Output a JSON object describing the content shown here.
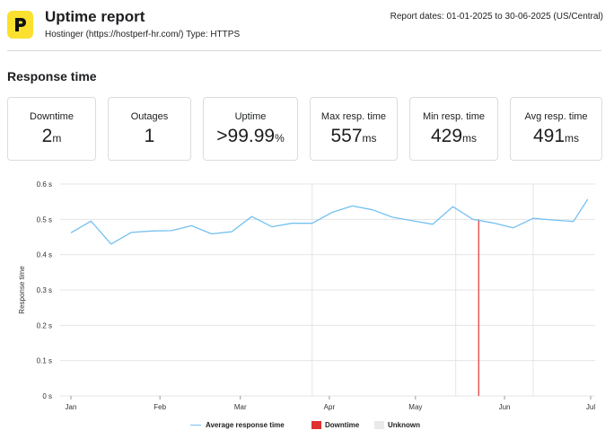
{
  "header": {
    "title": "Uptime report",
    "subtitle": "Hostinger (https://hostperf-hr.com/) Type: HTTPS",
    "report_dates": "Report dates: 01-01-2025 to 30-06-2025 (US/Central)",
    "logo_icon": "hostinger-logo-icon",
    "logo_color": "#fbe02f"
  },
  "section": {
    "title": "Response time"
  },
  "cards": [
    {
      "label": "Downtime",
      "value": "2",
      "unit": "m"
    },
    {
      "label": "Outages",
      "value": "1",
      "unit": ""
    },
    {
      "label": "Uptime",
      "value": ">99.99",
      "unit": "%"
    },
    {
      "label": "Max resp. time",
      "value": "557",
      "unit": "ms"
    },
    {
      "label": "Min resp. time",
      "value": "429",
      "unit": "ms"
    },
    {
      "label": "Avg resp. time",
      "value": "491",
      "unit": "ms"
    }
  ],
  "legend": {
    "avg": "Average response time",
    "downtime": "Downtime",
    "unknown": "Unknown"
  },
  "colors": {
    "line": "#74c1f1",
    "downtime": "#e03131",
    "unknown": "#e9e9ea",
    "grid": "#e4e4e6"
  },
  "chart_data": {
    "type": "line",
    "ylabel": "Response time",
    "ylim": [
      0,
      0.6
    ],
    "yticks": [
      0,
      0.1,
      0.2,
      0.3,
      0.4,
      0.5,
      0.6
    ],
    "ytick_labels": [
      "0 s",
      "0.1 s",
      "0.2 s",
      "0.3 s",
      "0.4 s",
      "0.5 s",
      "0.6 s"
    ],
    "x_start": "2025-01-01",
    "x_end": "2025-06-30",
    "xticks": [
      {
        "date": "2025-01-01",
        "label": "Jan"
      },
      {
        "date": "2025-02-01",
        "label": "Feb"
      },
      {
        "date": "2025-03-01",
        "label": "Mar"
      },
      {
        "date": "2025-04-01",
        "label": "Apr"
      },
      {
        "date": "2025-05-01",
        "label": "May"
      },
      {
        "date": "2025-06-01",
        "label": "Jun"
      },
      {
        "date": "2025-07-01",
        "label": "Jul"
      }
    ],
    "grid": true,
    "legend_position": "bottom",
    "series": [
      {
        "name": "Average response time",
        "x": [
          "2025-01-01",
          "2025-01-08",
          "2025-01-15",
          "2025-01-22",
          "2025-01-29",
          "2025-02-05",
          "2025-02-12",
          "2025-02-19",
          "2025-02-26",
          "2025-03-05",
          "2025-03-12",
          "2025-03-19",
          "2025-03-26",
          "2025-04-02",
          "2025-04-09",
          "2025-04-16",
          "2025-04-23",
          "2025-04-30",
          "2025-05-07",
          "2025-05-14",
          "2025-05-21",
          "2025-05-28",
          "2025-06-04",
          "2025-06-11",
          "2025-06-18",
          "2025-06-25",
          "2025-06-30"
        ],
        "y": [
          0.462,
          0.495,
          0.43,
          0.463,
          0.467,
          0.468,
          0.482,
          0.459,
          0.465,
          0.508,
          0.479,
          0.489,
          0.489,
          0.52,
          0.538,
          0.527,
          0.506,
          0.496,
          0.486,
          0.536,
          0.5,
          0.49,
          0.476,
          0.503,
          0.498,
          0.494,
          0.557
        ]
      }
    ],
    "downtime": [
      {
        "date": "2025-05-23"
      }
    ],
    "unknown": [
      {
        "date": "2025-03-26"
      },
      {
        "date": "2025-05-15"
      },
      {
        "date": "2025-06-11"
      }
    ]
  }
}
